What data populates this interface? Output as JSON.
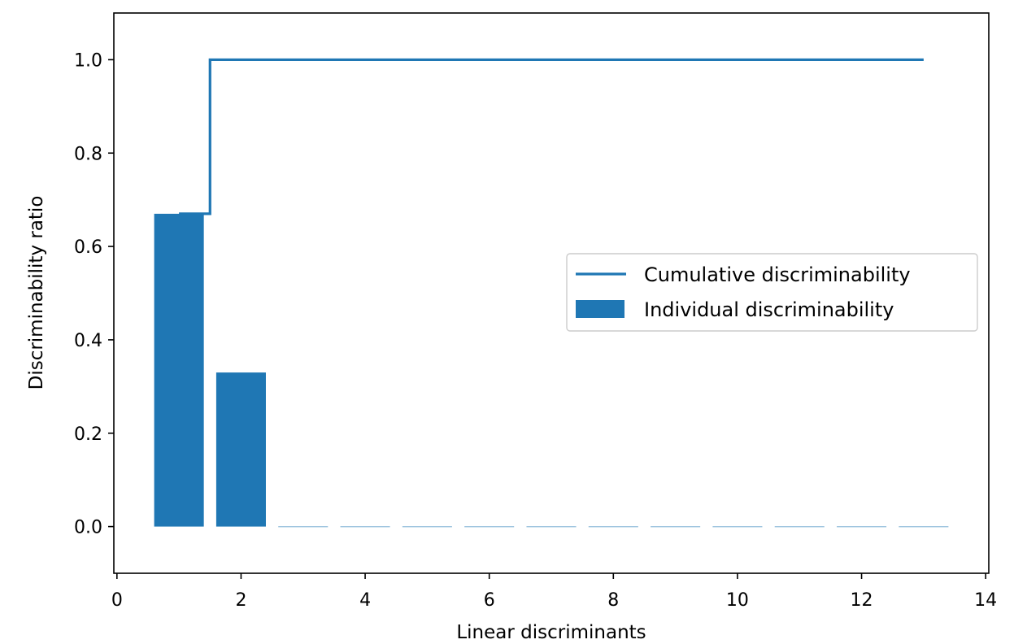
{
  "chart_data": {
    "type": "bar",
    "title": "",
    "xlabel": "Linear discriminants",
    "ylabel": "Discriminability ratio",
    "xlim": [
      -0.05,
      14.05
    ],
    "ylim": [
      -0.1,
      1.1
    ],
    "xticks": [
      0,
      2,
      4,
      6,
      8,
      10,
      12,
      14
    ],
    "xtick_labels": [
      "0",
      "2",
      "4",
      "6",
      "8",
      "10",
      "12",
      "14"
    ],
    "yticks": [
      0.0,
      0.2,
      0.4,
      0.6,
      0.8,
      1.0
    ],
    "ytick_labels": [
      "0.0",
      "0.2",
      "0.4",
      "0.6",
      "0.8",
      "1.0"
    ],
    "grid": false,
    "legend_position": "center-right",
    "color": "#1f77b4",
    "series": [
      {
        "name": "Individual discriminability",
        "kind": "bar",
        "x": [
          1,
          2,
          3,
          4,
          5,
          6,
          7,
          8,
          9,
          10,
          11,
          12,
          13
        ],
        "values": [
          0.67,
          0.33,
          0,
          0,
          0,
          0,
          0,
          0,
          0,
          0,
          0,
          0,
          0
        ]
      },
      {
        "name": "Cumulative discriminability",
        "kind": "step",
        "x": [
          1,
          2,
          3,
          4,
          5,
          6,
          7,
          8,
          9,
          10,
          11,
          12,
          13
        ],
        "values": [
          0.67,
          1.0,
          1.0,
          1.0,
          1.0,
          1.0,
          1.0,
          1.0,
          1.0,
          1.0,
          1.0,
          1.0,
          1.0
        ]
      }
    ]
  }
}
